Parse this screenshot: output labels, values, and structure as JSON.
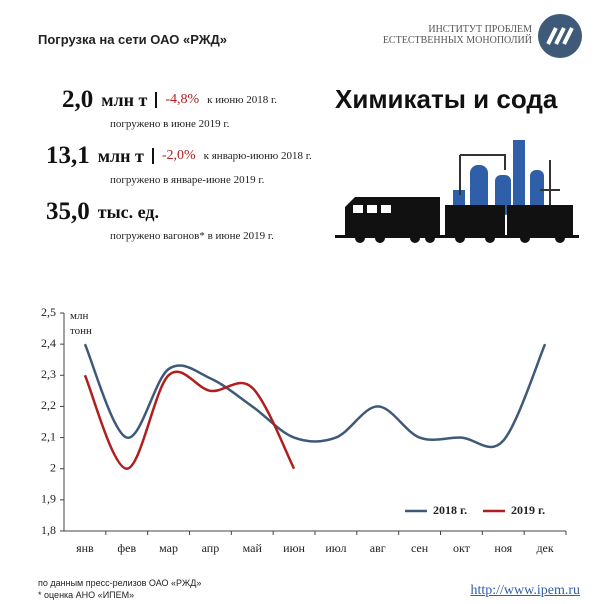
{
  "header": {
    "title": "Погрузка на сети ОАО «РЖД»",
    "logo_line1": "ИНСТИТУТ ПРОБЛЕМ",
    "logo_line2": "ЕСТЕСТВЕННЫХ МОНОПОЛИЙ"
  },
  "headline": "Химикаты и сода",
  "stats": [
    {
      "value": "2,0",
      "unit": "млн т",
      "change": "-4,8%",
      "comparison": "к июню 2018 г.",
      "note": "погружено в июне 2019 г."
    },
    {
      "value": "13,1",
      "unit": "млн т",
      "change": "-2,0%",
      "comparison": "к январю-июню 2018 г.",
      "note": "погружено в январе-июне 2019 г."
    },
    {
      "value": "35,0",
      "unit": "тыс. ед.",
      "note": "погружено вагонов* в июне 2019 г."
    }
  ],
  "chart_data": {
    "type": "line",
    "y_label": "млн тонн",
    "categories": [
      "янв",
      "фев",
      "мар",
      "апр",
      "май",
      "июн",
      "июл",
      "авг",
      "сен",
      "окт",
      "ноя",
      "дек"
    ],
    "series": [
      {
        "name": "2018 г.",
        "color": "#3e5a78",
        "values": [
          2.4,
          2.1,
          2.32,
          2.29,
          2.2,
          2.1,
          2.1,
          2.2,
          2.1,
          2.1,
          2.09,
          2.4
        ]
      },
      {
        "name": "2019 г.",
        "color": "#b01e1e",
        "values": [
          2.3,
          2.0,
          2.3,
          2.25,
          2.26,
          2.0,
          null,
          null,
          null,
          null,
          null,
          null
        ]
      }
    ],
    "ylim": [
      1.8,
      2.5
    ],
    "yticks": [
      {
        "value": 1.8,
        "label": "1,8"
      },
      {
        "value": 1.9,
        "label": "1,9"
      },
      2,
      {
        "value": 2.1,
        "label": "2,1"
      },
      {
        "value": 2.2,
        "label": "2,2"
      },
      {
        "value": 2.3,
        "label": "2,3"
      },
      {
        "value": 2.4,
        "label": "2,4"
      },
      {
        "value": 2.5,
        "label": "2,5"
      }
    ],
    "legend": "lower right"
  },
  "footer": {
    "source": "по данным  пресс-релизов ОАО «РЖД»",
    "footnote": "* оценка АНО «ИПЕМ»",
    "link": "http://www.ipem.ru"
  }
}
